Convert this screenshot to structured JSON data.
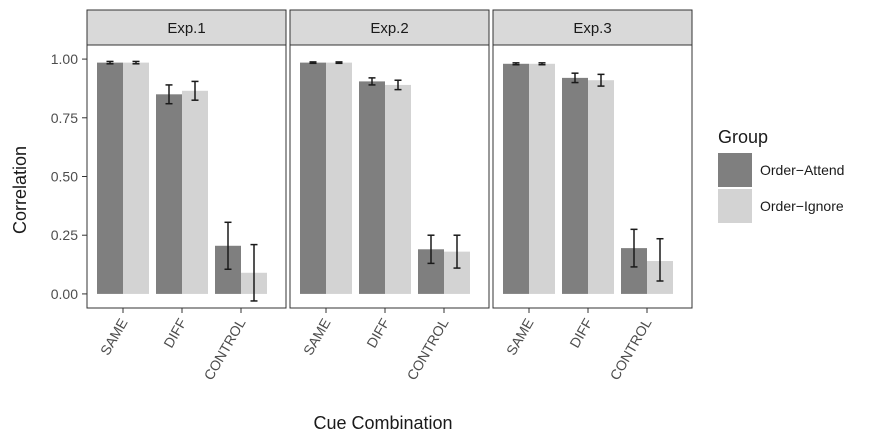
{
  "chart_data": {
    "type": "bar",
    "xlabel": "Cue Combination",
    "ylabel": "Correlation",
    "ylim": [
      -0.06,
      1.06
    ],
    "yticks": [
      "0.00",
      "0.25",
      "0.50",
      "0.75",
      "1.00"
    ],
    "ytick_values": [
      0,
      0.25,
      0.5,
      0.75,
      1.0
    ],
    "categories": [
      "SAME",
      "DIFF",
      "CONTROL"
    ],
    "grid": false,
    "legend": {
      "title": "Group",
      "position": "right",
      "items": [
        {
          "label": "Order−Attend",
          "color": "#7f7f7f"
        },
        {
          "label": "Order−Ignore",
          "color": "#d3d3d3"
        }
      ]
    },
    "panels": [
      {
        "title": "Exp.1",
        "series": [
          {
            "name": "Order−Attend",
            "values": [
              0.985,
              0.85,
              0.205
            ],
            "err_low": [
              0.98,
              0.81,
              0.105
            ],
            "err_high": [
              0.99,
              0.89,
              0.305
            ]
          },
          {
            "name": "Order−Ignore",
            "values": [
              0.985,
              0.865,
              0.09
            ],
            "err_low": [
              0.98,
              0.825,
              -0.03
            ],
            "err_high": [
              0.99,
              0.905,
              0.21
            ]
          }
        ]
      },
      {
        "title": "Exp.2",
        "series": [
          {
            "name": "Order−Attend",
            "values": [
              0.985,
              0.905,
              0.19
            ],
            "err_low": [
              0.982,
              0.89,
              0.13
            ],
            "err_high": [
              0.988,
              0.92,
              0.25
            ]
          },
          {
            "name": "Order−Ignore",
            "values": [
              0.985,
              0.89,
              0.18
            ],
            "err_low": [
              0.982,
              0.87,
              0.11
            ],
            "err_high": [
              0.988,
              0.91,
              0.25
            ]
          }
        ]
      },
      {
        "title": "Exp.3",
        "series": [
          {
            "name": "Order−Attend",
            "values": [
              0.98,
              0.92,
              0.195
            ],
            "err_low": [
              0.976,
              0.9,
              0.115
            ],
            "err_high": [
              0.984,
              0.94,
              0.275
            ]
          },
          {
            "name": "Order−Ignore",
            "values": [
              0.98,
              0.91,
              0.14
            ],
            "err_low": [
              0.976,
              0.885,
              0.055
            ],
            "err_high": [
              0.984,
              0.935,
              0.235
            ]
          }
        ]
      }
    ]
  }
}
